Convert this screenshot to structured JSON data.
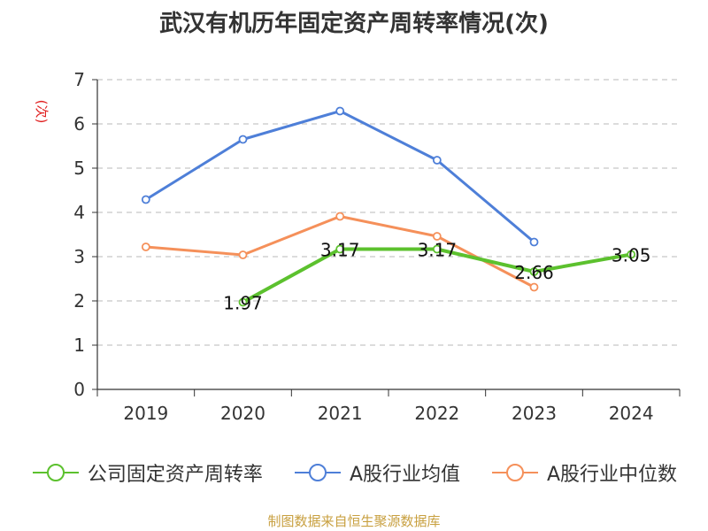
{
  "chart_data": {
    "type": "line",
    "title": "武汉有机历年固定资产周转率情况(次)",
    "ylabel": "(次)",
    "xlabel": "",
    "categories": [
      "2019",
      "2020",
      "2021",
      "2022",
      "2023",
      "2024"
    ],
    "ylim": [
      0,
      7
    ],
    "yticks": [
      0,
      1,
      2,
      3,
      4,
      5,
      6,
      7
    ],
    "grid": true,
    "legend_position": "bottom",
    "series": [
      {
        "name": "公司固定资产周转率",
        "color": "#5cc12e",
        "values": [
          null,
          1.97,
          3.17,
          3.17,
          2.66,
          3.05
        ],
        "labels": [
          "",
          "1.97",
          "3.17",
          "3.17",
          "2.66",
          "3.05"
        ]
      },
      {
        "name": "A股行业均值",
        "color": "#4e7fd8",
        "values": [
          4.29,
          5.65,
          6.29,
          5.18,
          3.33,
          null
        ]
      },
      {
        "name": "A股行业中位数",
        "color": "#f5905a",
        "values": [
          3.22,
          3.04,
          3.91,
          3.46,
          2.31,
          null
        ]
      }
    ],
    "source": "制图数据来自恒生聚源数据库"
  }
}
